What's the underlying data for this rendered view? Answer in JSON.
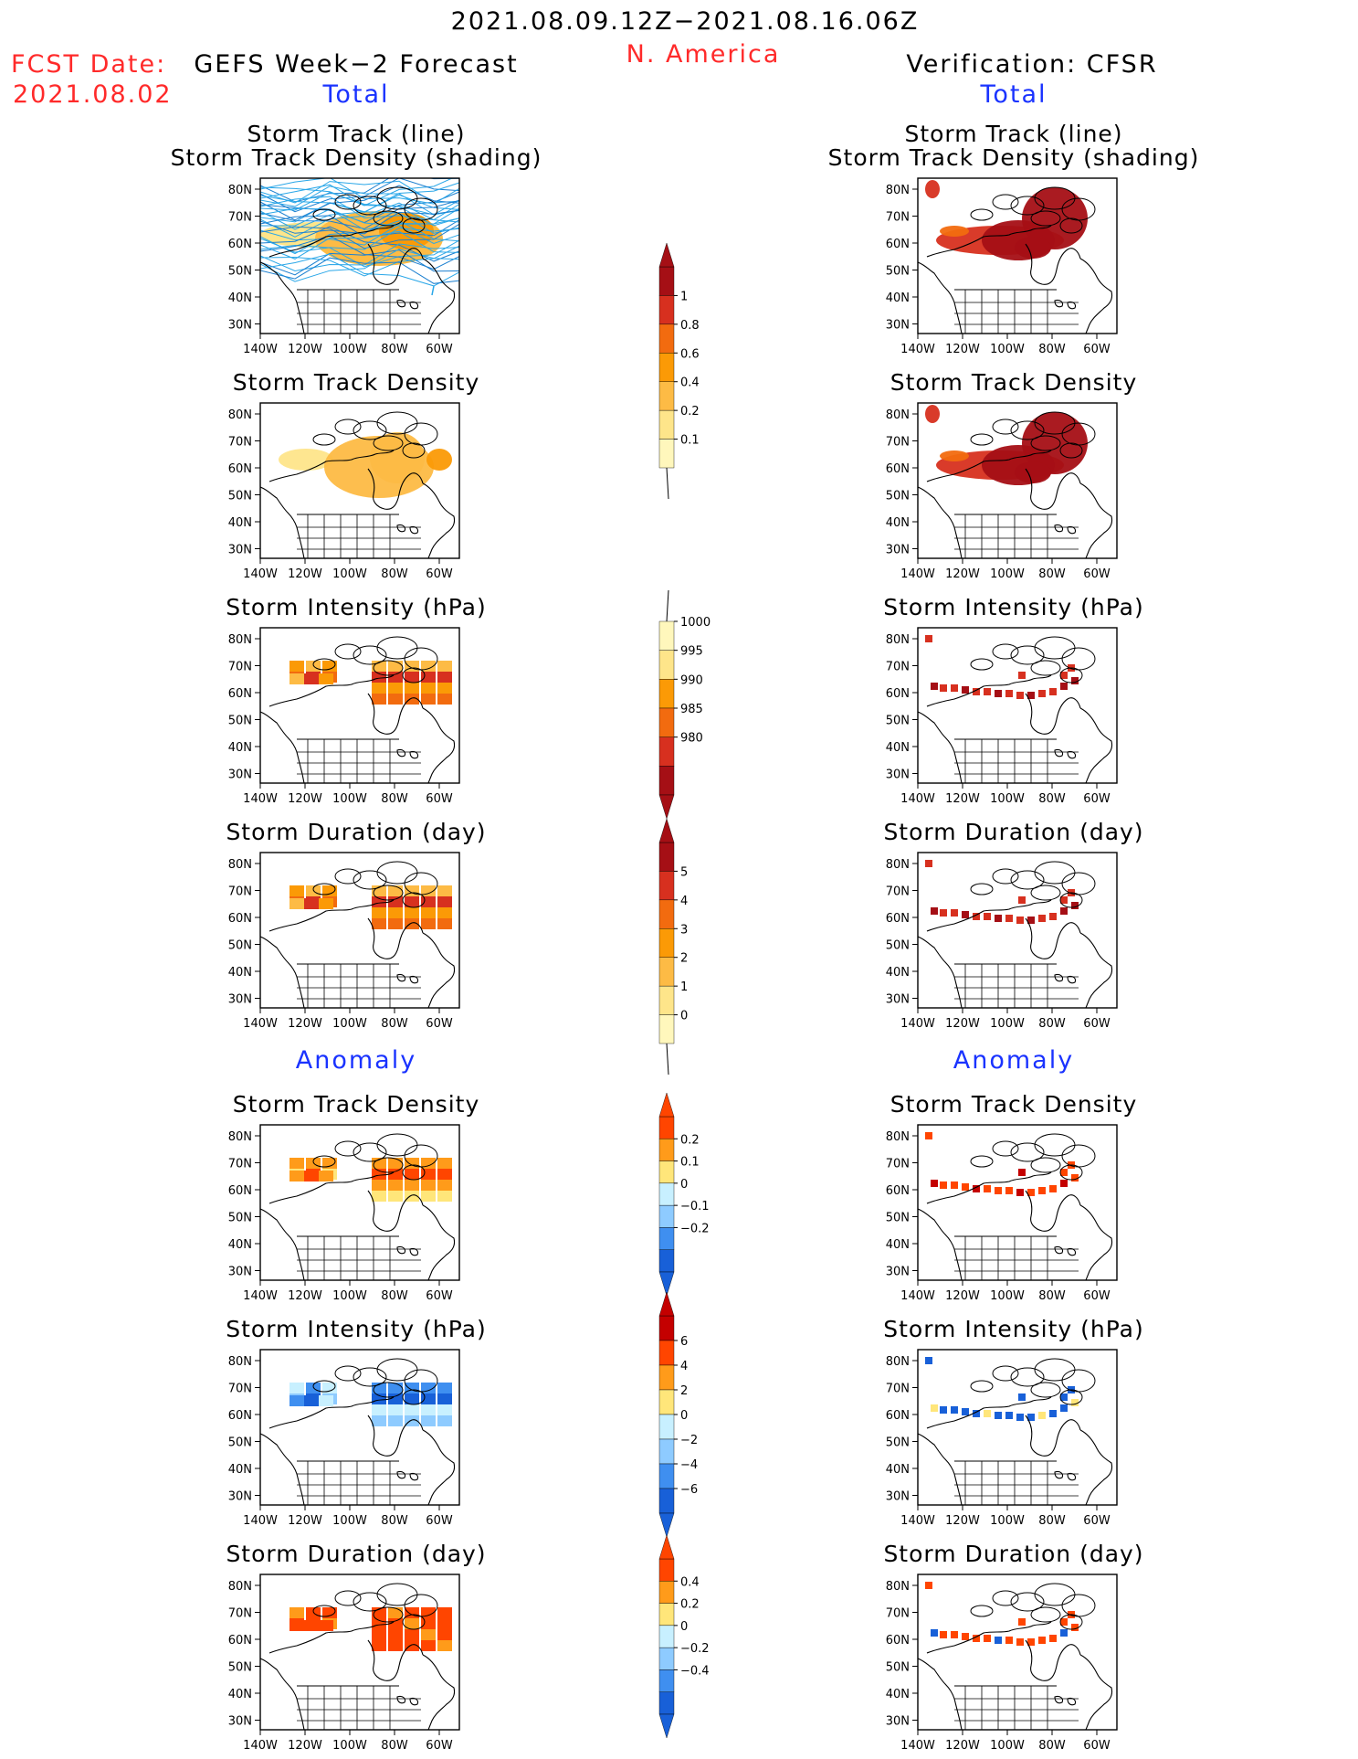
{
  "header": {
    "date_range": "2021.08.09.12Z−2021.08.16.06Z",
    "region": "N. America",
    "fcst_label": "FCST Date:",
    "fcst_date": "2021.08.02",
    "left_title": "GEFS Week−2 Forecast",
    "right_title": "Verification: CFSR",
    "total_label": "Total",
    "anomaly_label": "Anomaly"
  },
  "panel_titles": {
    "track_line": "Storm Track (line)",
    "track_shading": "Storm Track Density (shading)",
    "density": "Storm Track Density",
    "intensity": "Storm Intensity (hPa)",
    "duration": "Storm Duration (day)"
  },
  "axes": {
    "lat_ticks": [
      "80N",
      "70N",
      "60N",
      "50N",
      "40N",
      "30N"
    ],
    "lon_ticks": [
      "140W",
      "120W",
      "100W",
      "80W",
      "60W"
    ]
  },
  "colorbars": [
    {
      "id": "total-density",
      "labels": [
        "1",
        "0.8",
        "0.6",
        "0.4",
        "0.2",
        "0.1"
      ],
      "colors": [
        "#a50f15",
        "#d7301f",
        "#f26b0f",
        "#fb9a06",
        "#fdbb45",
        "#fee58a",
        "#fff7bc"
      ],
      "ends": "top-arrow"
    },
    {
      "id": "total-intensity",
      "labels": [
        "1000",
        "995",
        "990",
        "985",
        "980"
      ],
      "colors": [
        "#fff7bc",
        "#fee58a",
        "#fb9a06",
        "#f26b0f",
        "#d7301f",
        "#a50f15"
      ],
      "ends": "bottom-arrow"
    },
    {
      "id": "total-duration",
      "labels": [
        "5",
        "4",
        "3",
        "2",
        "1",
        "0"
      ],
      "colors": [
        "#a50f15",
        "#d7301f",
        "#f26b0f",
        "#fb9a06",
        "#fdbb45",
        "#fee58a",
        "#fff7bc"
      ],
      "ends": "top-arrow"
    },
    {
      "id": "anom-density",
      "labels": [
        "0.2",
        "0.1",
        "0",
        "−0.1",
        "−0.2"
      ],
      "colors": [
        "#ff4500",
        "#ff9b1a",
        "#ffe67a",
        "#c8f0ff",
        "#8ecbff",
        "#3f8ff0",
        "#1860d8"
      ],
      "ends": "both"
    },
    {
      "id": "anom-intensity",
      "labels": [
        "6",
        "4",
        "2",
        "0",
        "−2",
        "−4",
        "−6"
      ],
      "colors": [
        "#c40000",
        "#ff4500",
        "#ff9b1a",
        "#ffe67a",
        "#c8f0ff",
        "#8ecbff",
        "#3f8ff0",
        "#1860d8"
      ],
      "ends": "both"
    },
    {
      "id": "anom-duration",
      "labels": [
        "0.4",
        "0.2",
        "0",
        "−0.2",
        "−0.4"
      ],
      "colors": [
        "#ff4500",
        "#ff9b1a",
        "#ffe67a",
        "#c8f0ff",
        "#8ecbff",
        "#3f8ff0",
        "#1860d8"
      ],
      "ends": "both"
    }
  ]
}
